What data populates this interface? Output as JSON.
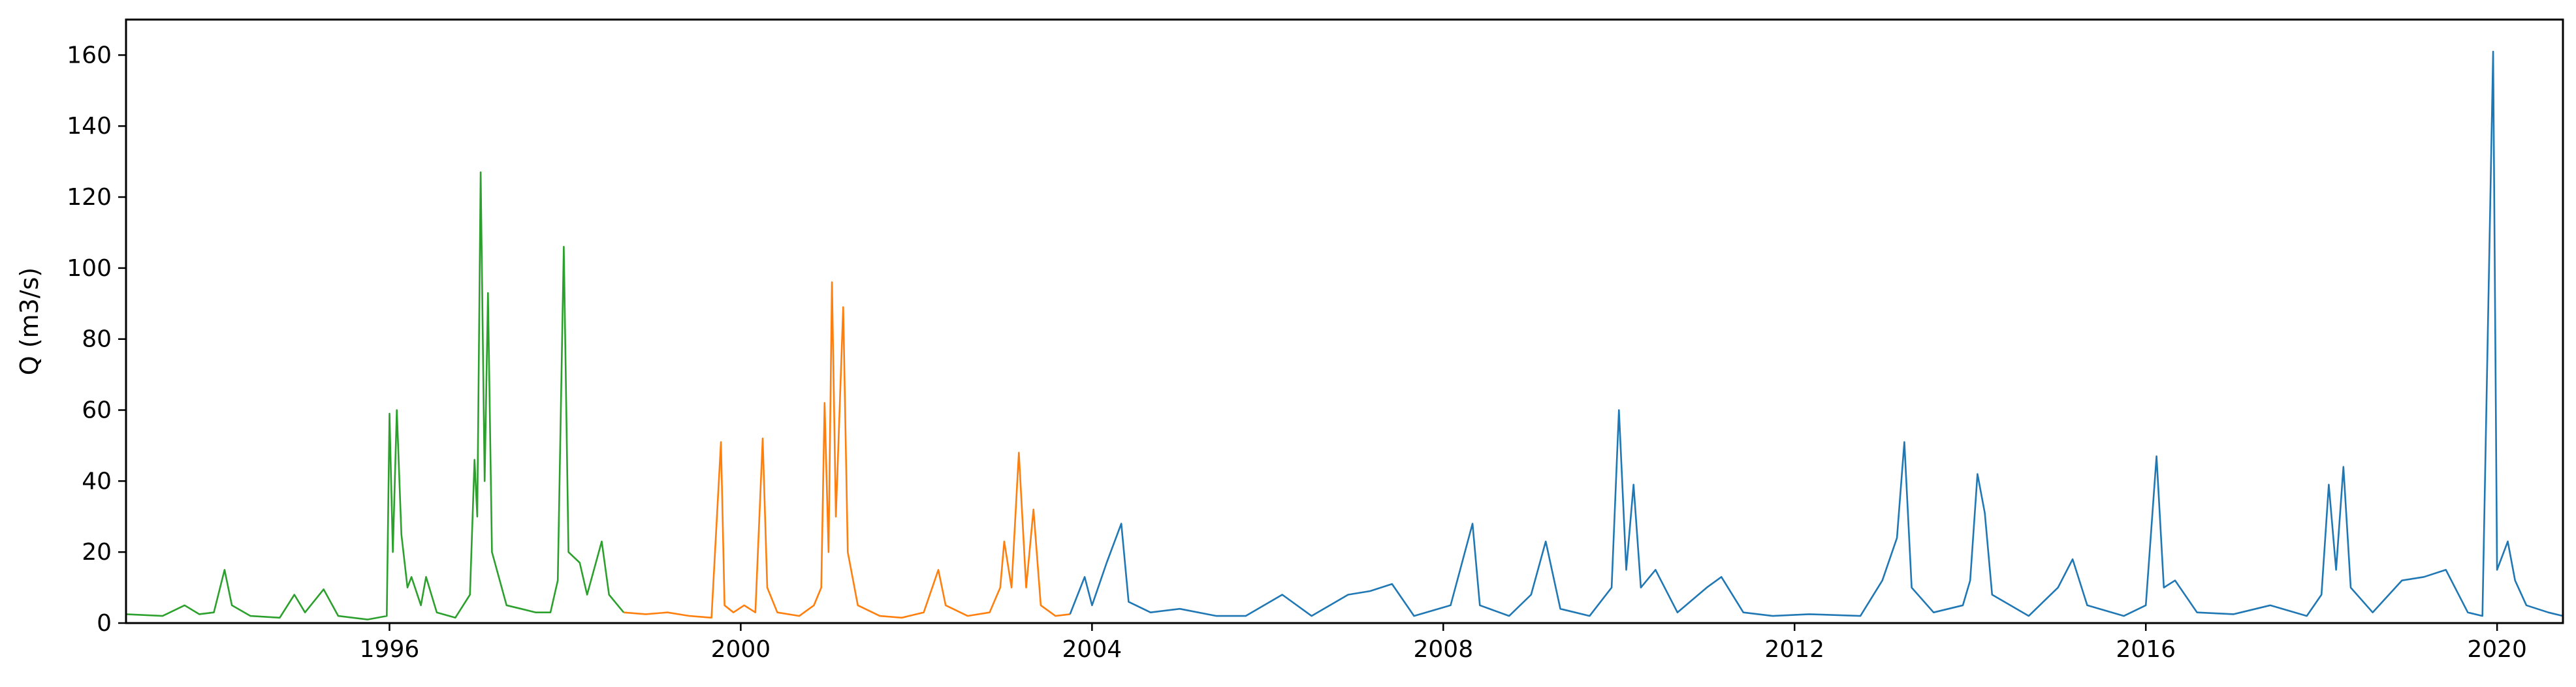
{
  "chart_data": {
    "type": "line",
    "title": "",
    "xlabel": "",
    "ylabel": "Q (m3/s)",
    "xlim": [
      "1993-01-01",
      "2020-10-01"
    ],
    "ylim": [
      0,
      170
    ],
    "x_ticks": [
      "1996",
      "2000",
      "2004",
      "2008",
      "2012",
      "2016",
      "2020"
    ],
    "y_ticks": [
      0,
      20,
      40,
      60,
      80,
      100,
      120,
      140,
      160
    ],
    "grid": false,
    "legend": "none",
    "series": [
      {
        "color": "#2ca02c",
        "points": [
          [
            "1993-01-01",
            2.5
          ],
          [
            "1993-06-01",
            2.0
          ],
          [
            "1993-09-01",
            5.0
          ],
          [
            "1993-11-01",
            2.5
          ],
          [
            "1994-01-01",
            3.0
          ],
          [
            "1994-02-15",
            15.0
          ],
          [
            "1994-03-15",
            5.0
          ],
          [
            "1994-06-01",
            2.0
          ],
          [
            "1994-10-01",
            1.5
          ],
          [
            "1994-12-01",
            8.0
          ],
          [
            "1995-01-15",
            3.0
          ],
          [
            "1995-04-01",
            9.5
          ],
          [
            "1995-06-01",
            2.0
          ],
          [
            "1995-10-01",
            1.0
          ],
          [
            "1995-12-20",
            2.0
          ],
          [
            "1996-01-01",
            59.0
          ],
          [
            "1996-01-15",
            20.0
          ],
          [
            "1996-02-01",
            60.0
          ],
          [
            "1996-02-20",
            25.0
          ],
          [
            "1996-03-15",
            10.0
          ],
          [
            "1996-04-01",
            13.0
          ],
          [
            "1996-05-10",
            5.0
          ],
          [
            "1996-06-01",
            13.0
          ],
          [
            "1996-07-15",
            3.0
          ],
          [
            "1996-10-01",
            1.5
          ],
          [
            "1996-12-01",
            8.0
          ],
          [
            "1996-12-20",
            46.0
          ],
          [
            "1997-01-01",
            30.0
          ],
          [
            "1997-01-15",
            127.0
          ],
          [
            "1997-02-01",
            40.0
          ],
          [
            "1997-02-15",
            93.0
          ],
          [
            "1997-03-01",
            20.0
          ],
          [
            "1997-05-01",
            5.0
          ],
          [
            "1997-07-01",
            4.0
          ],
          [
            "1997-09-01",
            3.0
          ],
          [
            "1997-11-01",
            3.0
          ],
          [
            "1997-12-01",
            12.0
          ],
          [
            "1997-12-26",
            106.0
          ],
          [
            "1998-01-15",
            20.0
          ],
          [
            "1998-03-01",
            17.0
          ],
          [
            "1998-04-01",
            8.0
          ],
          [
            "1998-06-01",
            23.0
          ],
          [
            "1998-07-01",
            8.0
          ],
          [
            "1998-09-01",
            3.0
          ]
        ]
      },
      {
        "color": "#ff7f0e",
        "points": [
          [
            "1998-09-01",
            3.0
          ],
          [
            "1998-12-01",
            2.5
          ],
          [
            "1999-03-01",
            3.0
          ],
          [
            "1999-06-01",
            2.0
          ],
          [
            "1999-09-01",
            1.5
          ],
          [
            "1999-10-10",
            51.0
          ],
          [
            "1999-10-25",
            5.0
          ],
          [
            "1999-12-01",
            3.0
          ],
          [
            "2000-01-15",
            5.0
          ],
          [
            "2000-03-01",
            3.0
          ],
          [
            "2000-04-01",
            52.0
          ],
          [
            "2000-04-20",
            10.0
          ],
          [
            "2000-06-01",
            3.0
          ],
          [
            "2000-09-01",
            2.0
          ],
          [
            "2000-11-01",
            5.0
          ],
          [
            "2000-12-01",
            10.0
          ],
          [
            "2000-12-15",
            62.0
          ],
          [
            "2001-01-01",
            20.0
          ],
          [
            "2001-01-15",
            96.0
          ],
          [
            "2001-02-01",
            30.0
          ],
          [
            "2001-03-01",
            89.0
          ],
          [
            "2001-03-20",
            20.0
          ],
          [
            "2001-05-01",
            5.0
          ],
          [
            "2001-08-01",
            2.0
          ],
          [
            "2001-11-01",
            1.5
          ],
          [
            "2002-02-01",
            3.0
          ],
          [
            "2002-04-01",
            15.0
          ],
          [
            "2002-05-01",
            5.0
          ],
          [
            "2002-08-01",
            2.0
          ],
          [
            "2002-11-01",
            3.0
          ],
          [
            "2002-12-15",
            10.0
          ],
          [
            "2003-01-01",
            23.0
          ],
          [
            "2003-02-01",
            10.0
          ],
          [
            "2003-03-01",
            48.0
          ],
          [
            "2003-04-01",
            10.0
          ],
          [
            "2003-05-01",
            32.0
          ],
          [
            "2003-06-01",
            5.0
          ],
          [
            "2003-08-01",
            2.0
          ],
          [
            "2003-10-01",
            2.5
          ]
        ]
      },
      {
        "color": "#1f77b4",
        "points": [
          [
            "2003-10-01",
            2.5
          ],
          [
            "2003-12-01",
            13.0
          ],
          [
            "2004-01-01",
            5.0
          ],
          [
            "2004-03-01",
            17.0
          ],
          [
            "2004-05-01",
            28.0
          ],
          [
            "2004-06-01",
            6.0
          ],
          [
            "2004-09-01",
            3.0
          ],
          [
            "2005-01-01",
            4.0
          ],
          [
            "2005-06-01",
            2.0
          ],
          [
            "2005-10-01",
            2.0
          ],
          [
            "2006-03-01",
            8.0
          ],
          [
            "2006-07-01",
            2.0
          ],
          [
            "2006-12-01",
            8.0
          ],
          [
            "2007-03-01",
            9.0
          ],
          [
            "2007-06-01",
            11.0
          ],
          [
            "2007-09-01",
            2.0
          ],
          [
            "2008-02-01",
            5.0
          ],
          [
            "2008-05-01",
            28.0
          ],
          [
            "2008-06-01",
            5.0
          ],
          [
            "2008-10-01",
            2.0
          ],
          [
            "2009-01-01",
            8.0
          ],
          [
            "2009-03-01",
            23.0
          ],
          [
            "2009-05-01",
            4.0
          ],
          [
            "2009-09-01",
            2.0
          ],
          [
            "2009-12-01",
            10.0
          ],
          [
            "2010-01-01",
            60.0
          ],
          [
            "2010-02-01",
            15.0
          ],
          [
            "2010-03-01",
            39.0
          ],
          [
            "2010-04-01",
            10.0
          ],
          [
            "2010-06-01",
            15.0
          ],
          [
            "2010-09-01",
            3.0
          ],
          [
            "2011-01-01",
            10.0
          ],
          [
            "2011-03-01",
            13.0
          ],
          [
            "2011-06-01",
            3.0
          ],
          [
            "2011-10-01",
            2.0
          ],
          [
            "2012-03-01",
            2.5
          ],
          [
            "2012-10-01",
            2.0
          ],
          [
            "2013-01-01",
            12.0
          ],
          [
            "2013-03-01",
            24.0
          ],
          [
            "2013-04-01",
            51.0
          ],
          [
            "2013-05-01",
            10.0
          ],
          [
            "2013-08-01",
            3.0
          ],
          [
            "2013-12-01",
            5.0
          ],
          [
            "2014-01-01",
            12.0
          ],
          [
            "2014-02-01",
            42.0
          ],
          [
            "2014-03-01",
            31.0
          ],
          [
            "2014-04-01",
            8.0
          ],
          [
            "2014-09-01",
            2.0
          ],
          [
            "2015-01-01",
            10.0
          ],
          [
            "2015-03-01",
            18.0
          ],
          [
            "2015-05-01",
            5.0
          ],
          [
            "2015-10-01",
            2.0
          ],
          [
            "2016-01-01",
            5.0
          ],
          [
            "2016-02-15",
            47.0
          ],
          [
            "2016-03-15",
            10.0
          ],
          [
            "2016-05-01",
            12.0
          ],
          [
            "2016-08-01",
            3.0
          ],
          [
            "2017-01-01",
            2.5
          ],
          [
            "2017-06-01",
            5.0
          ],
          [
            "2017-11-01",
            2.0
          ],
          [
            "2018-01-01",
            8.0
          ],
          [
            "2018-02-01",
            39.0
          ],
          [
            "2018-03-01",
            15.0
          ],
          [
            "2018-04-01",
            44.0
          ],
          [
            "2018-05-01",
            10.0
          ],
          [
            "2018-08-01",
            3.0
          ],
          [
            "2018-12-01",
            12.0
          ],
          [
            "2019-03-01",
            13.0
          ],
          [
            "2019-06-01",
            15.0
          ],
          [
            "2019-09-01",
            3.0
          ],
          [
            "2019-11-01",
            2.0
          ],
          [
            "2019-12-15",
            161.0
          ],
          [
            "2020-01-01",
            15.0
          ],
          [
            "2020-02-15",
            23.0
          ],
          [
            "2020-03-15",
            12.0
          ],
          [
            "2020-05-01",
            5.0
          ],
          [
            "2020-08-01",
            3.0
          ],
          [
            "2020-10-01",
            2.0
          ]
        ]
      }
    ]
  }
}
